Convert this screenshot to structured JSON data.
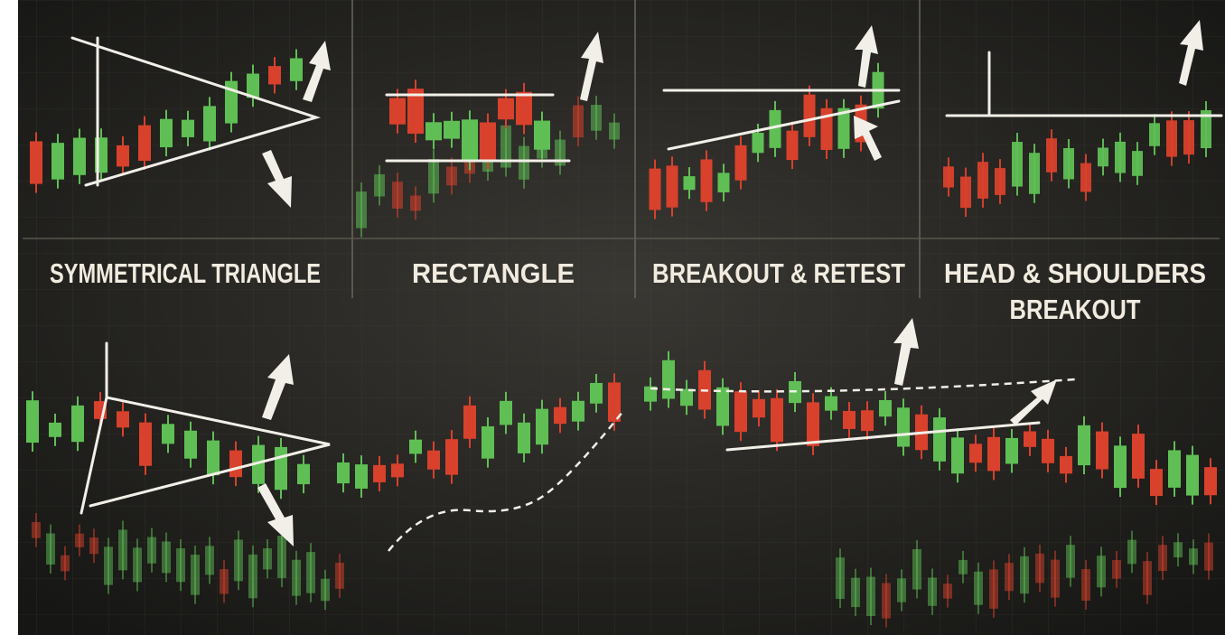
{
  "panels": [
    {
      "title_lines": [
        "SYMMETRICAL TRIANGLE"
      ]
    },
    {
      "title_lines": [
        "RECTANGLE"
      ]
    },
    {
      "title_lines": [
        "BREAKOUT & RETEST"
      ]
    },
    {
      "title_lines": [
        "HEAD & SHOULDERS",
        "BREAKOUT"
      ]
    }
  ]
}
